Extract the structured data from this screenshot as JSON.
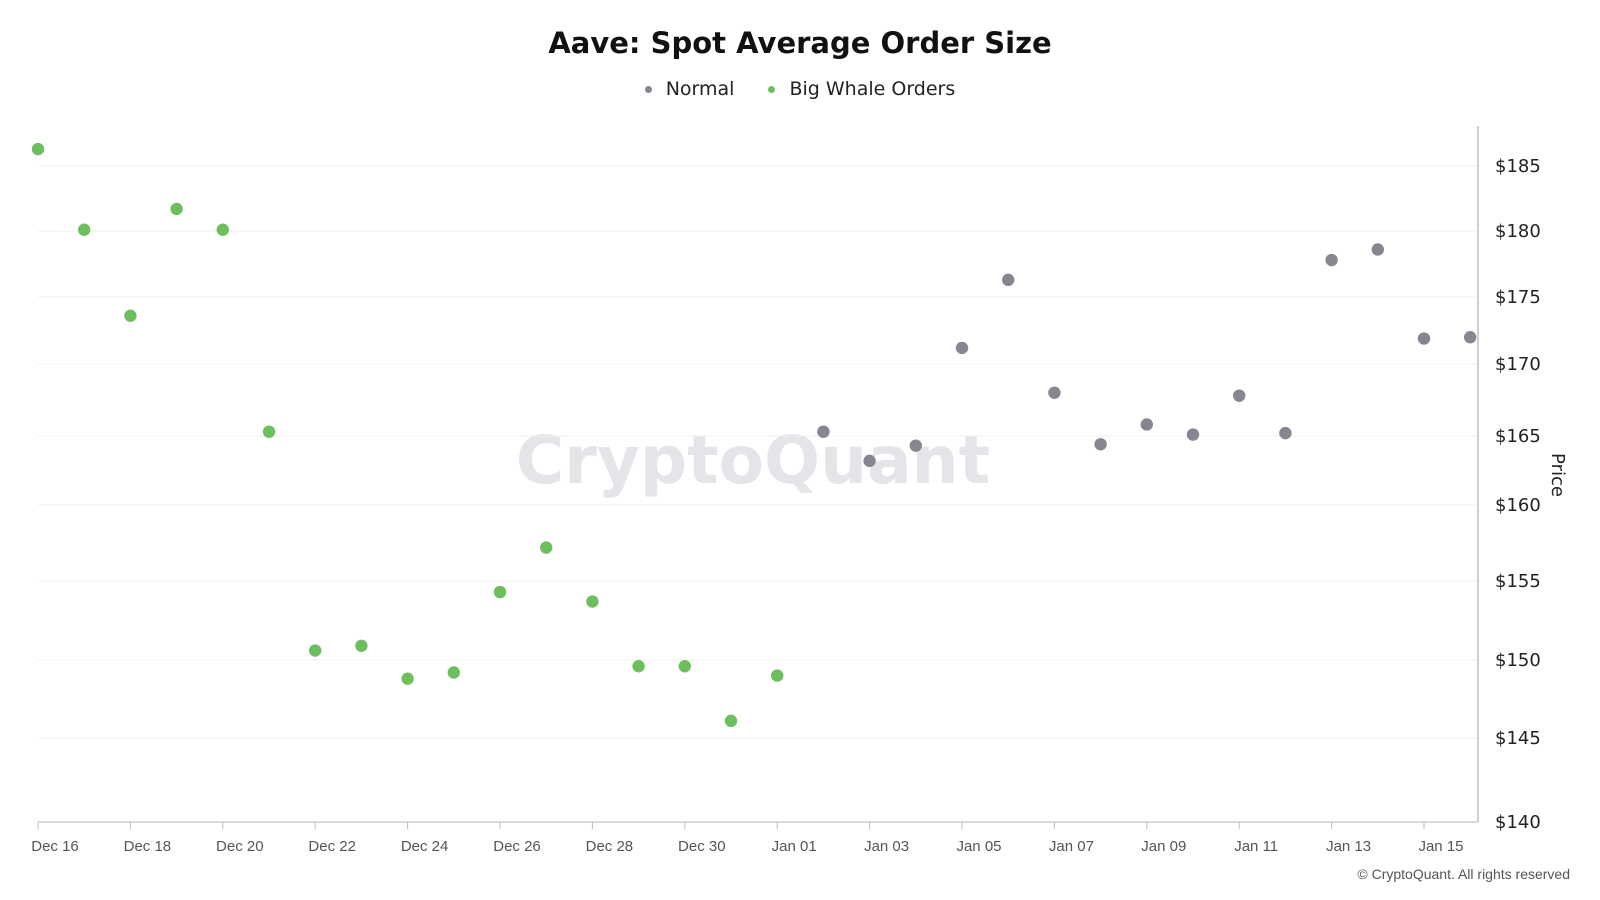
{
  "chart_data": {
    "type": "scatter",
    "title": "Aave: Spot Average Order Size",
    "ylabel": "Price",
    "ylim": [
      140,
      188
    ],
    "y_ticks": [
      140,
      145,
      150,
      155,
      160,
      165,
      170,
      175,
      180,
      185
    ],
    "y_tick_labels": [
      "$140",
      "$145",
      "$150",
      "$155",
      "$160",
      "$165",
      "$170",
      "$175",
      "$180",
      "$185"
    ],
    "x_tick_labels": [
      "Dec 16",
      "Dec 18",
      "Dec 20",
      "Dec 22",
      "Dec 24",
      "Dec 26",
      "Dec 28",
      "Dec 30",
      "Jan 01",
      "Jan 03",
      "Jan 05",
      "Jan 07",
      "Jan 09",
      "Jan 11",
      "Jan 13",
      "Jan 15"
    ],
    "dates": [
      "Dec 16",
      "Dec 17",
      "Dec 18",
      "Dec 19",
      "Dec 20",
      "Dec 21",
      "Dec 22",
      "Dec 23",
      "Dec 24",
      "Dec 25",
      "Dec 26",
      "Dec 27",
      "Dec 28",
      "Dec 29",
      "Dec 30",
      "Dec 31",
      "Jan 01",
      "Jan 02",
      "Jan 03",
      "Jan 04",
      "Jan 05",
      "Jan 06",
      "Jan 07",
      "Jan 08",
      "Jan 09",
      "Jan 10",
      "Jan 11",
      "Jan 12",
      "Jan 13",
      "Jan 14",
      "Jan 15",
      "Jan 16"
    ],
    "grid": true,
    "legend_position": "top-center",
    "series": [
      {
        "name": "Normal",
        "color": "#878690",
        "values": [
          null,
          null,
          null,
          null,
          null,
          null,
          null,
          null,
          null,
          null,
          null,
          null,
          null,
          null,
          null,
          null,
          null,
          165.3,
          163.2,
          164.3,
          171.2,
          176.3,
          168.0,
          164.4,
          165.8,
          165.1,
          167.8,
          165.2,
          177.8,
          178.6,
          171.9,
          172.0
        ]
      },
      {
        "name": "Big Whale Orders",
        "color": "#6dbf5e",
        "values": [
          186.3,
          180.1,
          173.6,
          181.7,
          180.1,
          165.3,
          150.6,
          150.9,
          148.8,
          149.2,
          154.3,
          157.2,
          153.7,
          149.6,
          149.6,
          146.1,
          149.0,
          null,
          null,
          null,
          null,
          null,
          null,
          null,
          null,
          null,
          null,
          null,
          null,
          null,
          null,
          null
        ]
      }
    ]
  },
  "watermark": "CryptoQuant",
  "copyright": "© CryptoQuant. All rights reserved"
}
